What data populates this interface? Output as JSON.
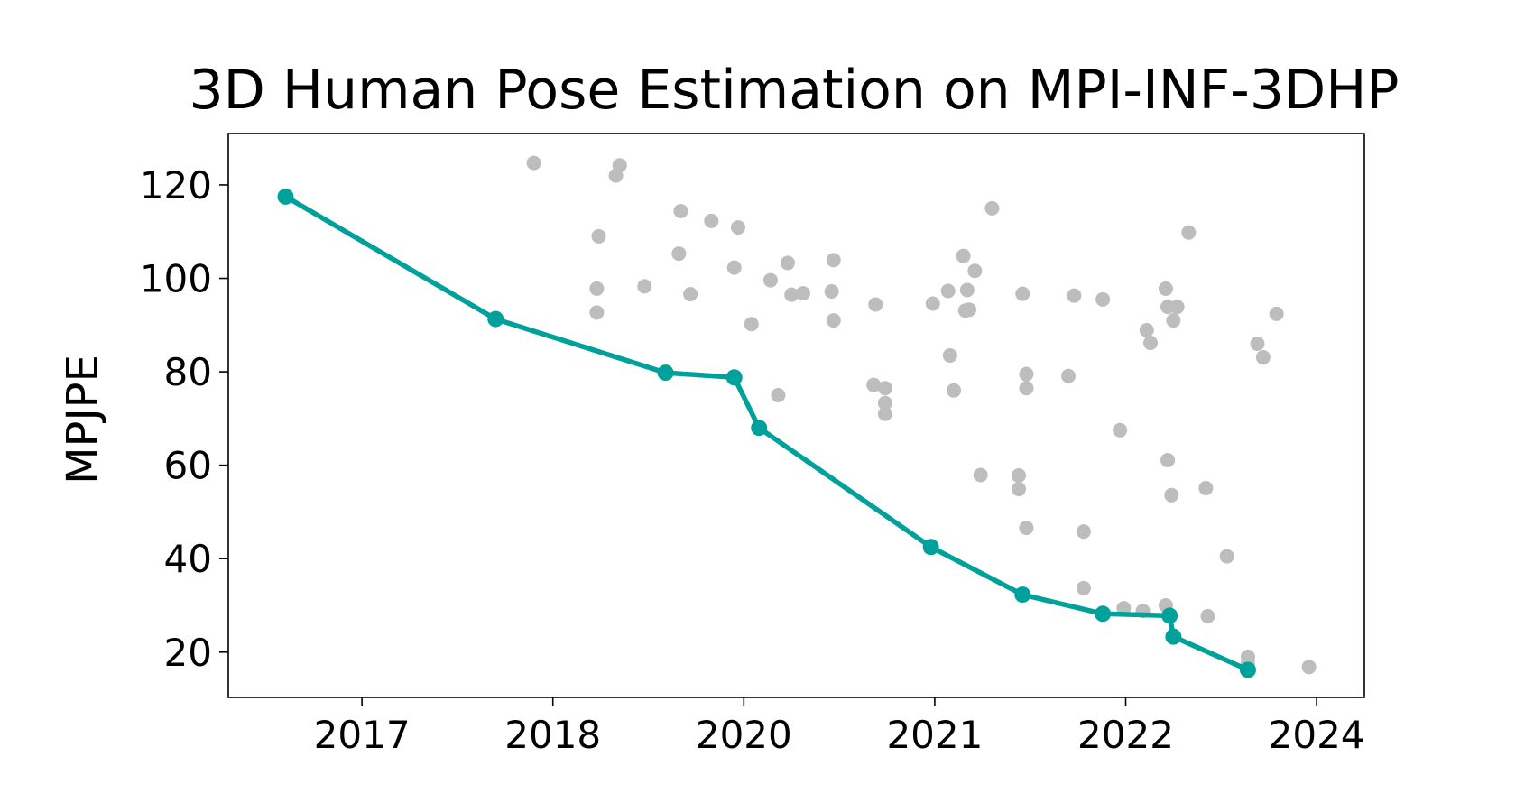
{
  "chart_data": {
    "type": "scatter",
    "title": "3D Human Pose Estimation on MPI-INF-3DHP",
    "xlabel": "",
    "ylabel": "MPJPE",
    "x_tick_labels": [
      "2017",
      "2018",
      "2020",
      "2021",
      "2022",
      "2024"
    ],
    "y_ticks": [
      20,
      40,
      60,
      80,
      100,
      120
    ],
    "xlim": [
      -0.7,
      5.25
    ],
    "ylim": [
      10.3,
      131.0
    ],
    "grid": false,
    "colors": {
      "sota_line": "#00a19b",
      "other_points": "#bdbdbd",
      "axes": "#000000"
    },
    "series": [
      {
        "role": "state_of_the_art",
        "style": "line_with_markers",
        "points": [
          [
            -0.4,
            117.5
          ],
          [
            0.7,
            91.3
          ],
          [
            1.59,
            79.8
          ],
          [
            1.95,
            78.8
          ],
          [
            2.08,
            68.0
          ],
          [
            2.98,
            42.5
          ],
          [
            3.46,
            32.3
          ],
          [
            3.88,
            28.2
          ],
          [
            4.23,
            27.8
          ],
          [
            4.25,
            23.3
          ],
          [
            4.64,
            16.2
          ]
        ]
      },
      {
        "role": "other_methods",
        "style": "markers",
        "points": [
          [
            0.9,
            124.7
          ],
          [
            1.35,
            124.2
          ],
          [
            1.33,
            122.0
          ],
          [
            1.24,
            109.0
          ],
          [
            1.23,
            97.8
          ],
          [
            1.23,
            92.7
          ],
          [
            1.48,
            98.3
          ],
          [
            1.67,
            114.4
          ],
          [
            1.83,
            112.3
          ],
          [
            1.66,
            105.3
          ],
          [
            1.72,
            96.6
          ],
          [
            1.97,
            110.9
          ],
          [
            1.95,
            102.3
          ],
          [
            2.04,
            90.2
          ],
          [
            2.14,
            99.6
          ],
          [
            2.23,
            103.3
          ],
          [
            2.25,
            96.5
          ],
          [
            2.31,
            96.8
          ],
          [
            2.18,
            75.0
          ],
          [
            2.46,
            97.2
          ],
          [
            2.47,
            103.9
          ],
          [
            2.47,
            91.0
          ],
          [
            2.69,
            94.4
          ],
          [
            2.68,
            77.2
          ],
          [
            2.74,
            76.5
          ],
          [
            2.74,
            73.3
          ],
          [
            2.74,
            71.0
          ],
          [
            2.99,
            94.6
          ],
          [
            3.07,
            97.3
          ],
          [
            3.15,
            104.8
          ],
          [
            3.21,
            101.6
          ],
          [
            3.17,
            97.5
          ],
          [
            3.16,
            93.1
          ],
          [
            3.18,
            93.3
          ],
          [
            3.08,
            83.5
          ],
          [
            3.1,
            76.0
          ],
          [
            3.24,
            57.9
          ],
          [
            3.3,
            115.0
          ],
          [
            3.46,
            96.7
          ],
          [
            3.44,
            57.8
          ],
          [
            3.44,
            54.9
          ],
          [
            3.48,
            79.5
          ],
          [
            3.48,
            76.5
          ],
          [
            3.48,
            46.6
          ],
          [
            3.7,
            79.1
          ],
          [
            3.73,
            96.3
          ],
          [
            3.78,
            45.8
          ],
          [
            3.78,
            33.7
          ],
          [
            3.88,
            95.5
          ],
          [
            3.97,
            67.5
          ],
          [
            3.99,
            29.4
          ],
          [
            4.09,
            28.8
          ],
          [
            4.11,
            88.9
          ],
          [
            4.13,
            86.2
          ],
          [
            4.21,
            97.8
          ],
          [
            4.22,
            93.9
          ],
          [
            4.27,
            93.9
          ],
          [
            4.25,
            91.0
          ],
          [
            4.22,
            61.1
          ],
          [
            4.24,
            53.6
          ],
          [
            4.21,
            30.0
          ],
          [
            4.42,
            55.1
          ],
          [
            4.43,
            27.7
          ],
          [
            4.33,
            109.8
          ],
          [
            4.53,
            40.5
          ],
          [
            4.64,
            19.0
          ],
          [
            4.64,
            17.6
          ],
          [
            4.69,
            86.0
          ],
          [
            4.72,
            83.1
          ],
          [
            4.79,
            92.4
          ],
          [
            4.96,
            16.8
          ]
        ]
      }
    ]
  }
}
